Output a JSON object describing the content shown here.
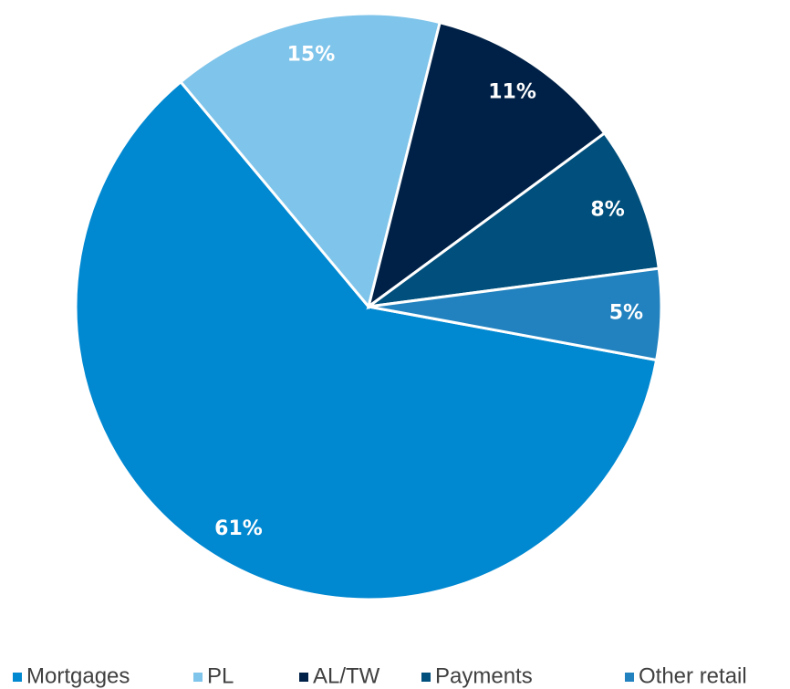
{
  "chart_data": {
    "type": "pie",
    "categories": [
      "Mortgages",
      "PL",
      "AL/TW",
      "Payments",
      "Other retail"
    ],
    "values": [
      61,
      15,
      11,
      8,
      5
    ],
    "value_labels": [
      "61%",
      "15%",
      "11%",
      "8%",
      "5%"
    ],
    "colors": [
      "#0088d1",
      "#7fc4ea",
      "#002147",
      "#004f7c",
      "#2282bf"
    ],
    "legend": "bottom"
  }
}
